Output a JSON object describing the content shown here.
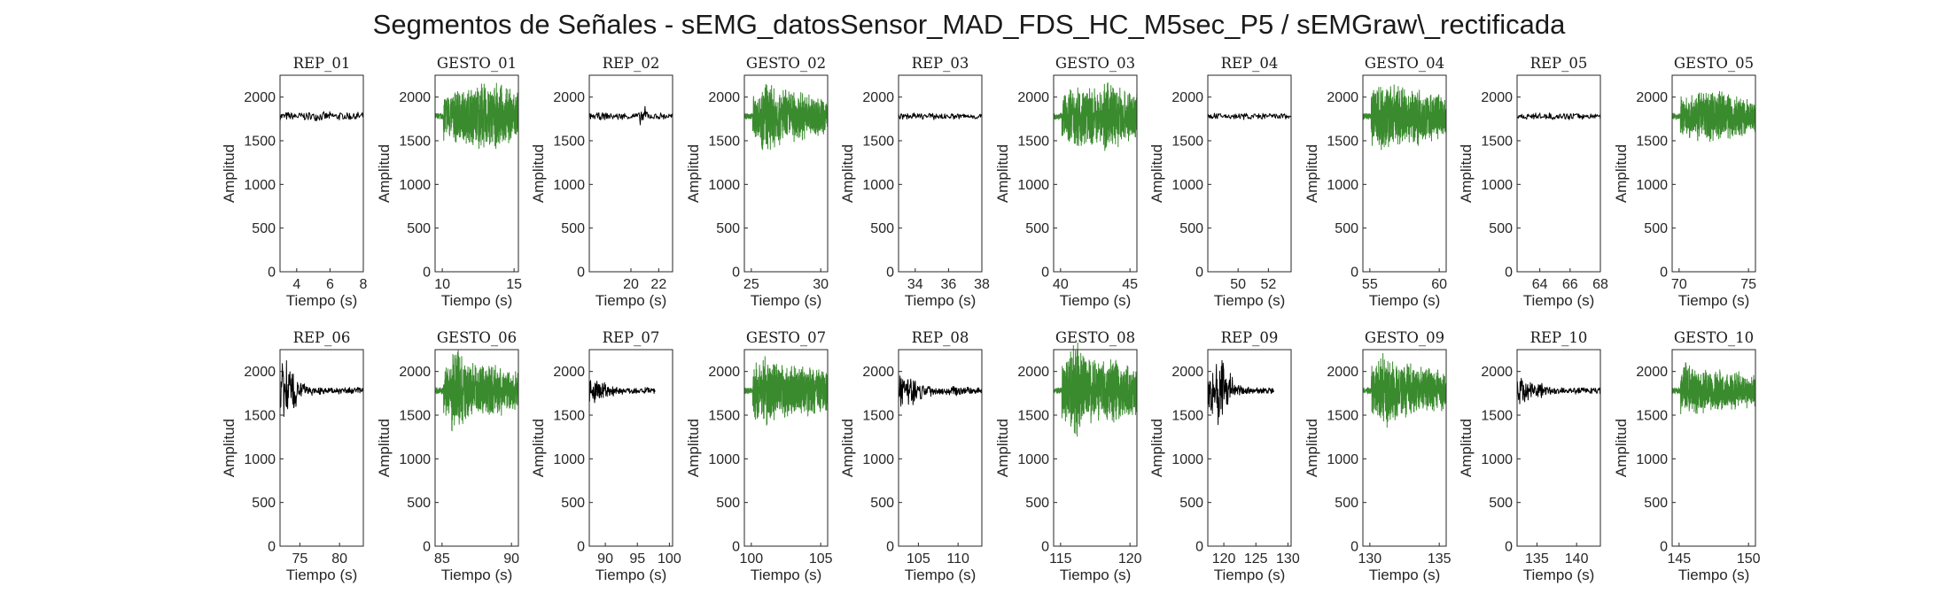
{
  "figure": {
    "title": "Segmentos de Señales - sEMG_datosSensor_MAD_FDS_HC_M5sec_P5 / sEMGraw\\_rectificada"
  },
  "colors": {
    "rep": "#000000",
    "gesto": "#3a8a2e",
    "axis": "#262626"
  },
  "chart_data": [
    {
      "type": "line",
      "title": "REP_01",
      "series_color": "black",
      "xlabel": "Tiempo (s)",
      "ylabel": "Amplitud",
      "xlim": [
        3,
        8
      ],
      "ylim": [
        0,
        2250
      ],
      "xticks": [
        4,
        6,
        8
      ],
      "yticks": [
        0,
        500,
        1000,
        1500,
        2000
      ],
      "baseline": 1780,
      "envelope": [
        55,
        55,
        55,
        55,
        55,
        55,
        55,
        55,
        55,
        55
      ],
      "n": 140
    },
    {
      "type": "line",
      "title": "GESTO_01",
      "series_color": "green",
      "xlabel": "Tiempo (s)",
      "ylabel": "Amplitud",
      "xlim": [
        9.5,
        15.3
      ],
      "ylim": [
        0,
        2250
      ],
      "xticks": [
        10,
        15
      ],
      "yticks": [
        0,
        500,
        1000,
        1500,
        2000
      ],
      "baseline": 1780,
      "envelope": [
        40,
        300,
        330,
        340,
        380,
        420,
        400,
        380,
        350,
        320
      ],
      "n": 700
    },
    {
      "type": "line",
      "title": "REP_02",
      "series_color": "black",
      "xlabel": "Tiempo (s)",
      "ylabel": "Amplitud",
      "xlim": [
        17,
        23
      ],
      "ylim": [
        0,
        2250
      ],
      "xticks": [
        20,
        22
      ],
      "yticks": [
        0,
        500,
        1000,
        1500,
        2000
      ],
      "baseline": 1780,
      "envelope": [
        45,
        45,
        45,
        45,
        45,
        45,
        120,
        45,
        45,
        45
      ],
      "n": 140
    },
    {
      "type": "line",
      "title": "GESTO_02",
      "series_color": "green",
      "xlabel": "Tiempo (s)",
      "ylabel": "Amplitud",
      "xlim": [
        24.5,
        30.5
      ],
      "ylim": [
        0,
        2250
      ],
      "xticks": [
        25,
        30
      ],
      "yticks": [
        0,
        500,
        1000,
        1500,
        2000
      ],
      "baseline": 1780,
      "envelope": [
        40,
        280,
        430,
        400,
        350,
        330,
        300,
        280,
        260,
        230
      ],
      "n": 700
    },
    {
      "type": "line",
      "title": "REP_03",
      "series_color": "black",
      "xlabel": "Tiempo (s)",
      "ylabel": "Amplitud",
      "xlim": [
        33,
        38
      ],
      "ylim": [
        0,
        2250
      ],
      "xticks": [
        34,
        36,
        38
      ],
      "yticks": [
        0,
        500,
        1000,
        1500,
        2000
      ],
      "baseline": 1780,
      "envelope": [
        40,
        40,
        40,
        40,
        40,
        40,
        40,
        40,
        40,
        40
      ],
      "n": 140
    },
    {
      "type": "line",
      "title": "GESTO_03",
      "series_color": "green",
      "xlabel": "Tiempo (s)",
      "ylabel": "Amplitud",
      "xlim": [
        39.5,
        45.5
      ],
      "ylim": [
        0,
        2250
      ],
      "xticks": [
        40,
        45
      ],
      "yticks": [
        0,
        500,
        1000,
        1500,
        2000
      ],
      "baseline": 1780,
      "envelope": [
        40,
        320,
        380,
        360,
        340,
        330,
        420,
        400,
        350,
        300
      ],
      "n": 700
    },
    {
      "type": "line",
      "title": "REP_04",
      "series_color": "black",
      "xlabel": "Tiempo (s)",
      "ylabel": "Amplitud",
      "xlim": [
        48,
        53.5
      ],
      "ylim": [
        0,
        2250
      ],
      "xticks": [
        50,
        52
      ],
      "yticks": [
        0,
        500,
        1000,
        1500,
        2000
      ],
      "baseline": 1780,
      "envelope": [
        40,
        40,
        40,
        40,
        40,
        40,
        40,
        40,
        40,
        40
      ],
      "n": 140
    },
    {
      "type": "line",
      "title": "GESTO_04",
      "series_color": "green",
      "xlabel": "Tiempo (s)",
      "ylabel": "Amplitud",
      "xlim": [
        54.5,
        60.5
      ],
      "ylim": [
        0,
        2250
      ],
      "xticks": [
        55,
        60
      ],
      "yticks": [
        0,
        500,
        1000,
        1500,
        2000
      ],
      "baseline": 1780,
      "envelope": [
        40,
        450,
        420,
        400,
        380,
        360,
        350,
        330,
        300,
        270
      ],
      "n": 700
    },
    {
      "type": "line",
      "title": "REP_05",
      "series_color": "black",
      "xlabel": "Tiempo (s)",
      "ylabel": "Amplitud",
      "xlim": [
        62.5,
        68
      ],
      "ylim": [
        0,
        2250
      ],
      "xticks": [
        64,
        66,
        68
      ],
      "yticks": [
        0,
        500,
        1000,
        1500,
        2000
      ],
      "baseline": 1780,
      "envelope": [
        40,
        40,
        40,
        40,
        40,
        40,
        40,
        40,
        40,
        40
      ],
      "n": 140
    },
    {
      "type": "line",
      "title": "GESTO_05",
      "series_color": "green",
      "xlabel": "Tiempo (s)",
      "ylabel": "Amplitud",
      "xlim": [
        69.5,
        75.5
      ],
      "ylim": [
        0,
        2250
      ],
      "xticks": [
        70,
        75
      ],
      "yticks": [
        0,
        500,
        1000,
        1500,
        2000
      ],
      "baseline": 1780,
      "envelope": [
        40,
        230,
        260,
        300,
        330,
        320,
        300,
        280,
        250,
        200
      ],
      "n": 700
    },
    {
      "type": "line",
      "title": "REP_06",
      "series_color": "black",
      "xlabel": "Tiempo (s)",
      "ylabel": "Amplitud",
      "xlim": [
        72.5,
        83
      ],
      "ylim": [
        0,
        2250
      ],
      "xticks": [
        75,
        80
      ],
      "yticks": [
        0,
        500,
        1000,
        1500,
        2000
      ],
      "baseline": 1780,
      "envelope": [
        420,
        300,
        120,
        60,
        45,
        40,
        40,
        40,
        40,
        40
      ],
      "n": 220
    },
    {
      "type": "line",
      "title": "GESTO_06",
      "series_color": "green",
      "xlabel": "Tiempo (s)",
      "ylabel": "Amplitud",
      "xlim": [
        84.5,
        90.5
      ],
      "ylim": [
        0,
        2250
      ],
      "xticks": [
        85,
        90
      ],
      "yticks": [
        0,
        500,
        1000,
        1500,
        2000
      ],
      "baseline": 1780,
      "envelope": [
        40,
        300,
        520,
        420,
        350,
        330,
        310,
        300,
        280,
        250
      ],
      "n": 700
    },
    {
      "type": "line",
      "title": "REP_07",
      "series_color": "black",
      "xlabel": "Tiempo (s)",
      "ylabel": "Amplitud",
      "xlim": [
        87.5,
        100.5
      ],
      "ylim": [
        0,
        2250
      ],
      "xticks": [
        90,
        95,
        100
      ],
      "yticks": [
        0,
        500,
        1000,
        1500,
        2000
      ],
      "baseline": 1780,
      "envelope": [
        200,
        150,
        80,
        50,
        40,
        40,
        40,
        40,
        0,
        0
      ],
      "n": 200
    },
    {
      "type": "line",
      "title": "GESTO_07",
      "series_color": "green",
      "xlabel": "Tiempo (s)",
      "ylabel": "Amplitud",
      "xlim": [
        99.5,
        105.5
      ],
      "ylim": [
        0,
        2250
      ],
      "xticks": [
        100,
        105
      ],
      "yticks": [
        0,
        500,
        1000,
        1500,
        2000
      ],
      "baseline": 1780,
      "envelope": [
        40,
        400,
        450,
        380,
        340,
        320,
        300,
        300,
        290,
        270
      ],
      "n": 700
    },
    {
      "type": "line",
      "title": "REP_08",
      "series_color": "black",
      "xlabel": "Tiempo (s)",
      "ylabel": "Amplitud",
      "xlim": [
        102.5,
        113
      ],
      "ylim": [
        0,
        2250
      ],
      "xticks": [
        105,
        110
      ],
      "yticks": [
        0,
        500,
        1000,
        1500,
        2000
      ],
      "baseline": 1780,
      "envelope": [
        230,
        200,
        120,
        80,
        60,
        50,
        60,
        50,
        45,
        45
      ],
      "n": 220
    },
    {
      "type": "line",
      "title": "GESTO_08",
      "series_color": "green",
      "xlabel": "Tiempo (s)",
      "ylabel": "Amplitud",
      "xlim": [
        114.5,
        120.5
      ],
      "ylim": [
        0,
        2250
      ],
      "xticks": [
        115,
        120
      ],
      "yticks": [
        0,
        500,
        1000,
        1500,
        2000
      ],
      "baseline": 1780,
      "envelope": [
        40,
        400,
        580,
        450,
        420,
        400,
        380,
        400,
        350,
        300
      ],
      "n": 700
    },
    {
      "type": "line",
      "title": "REP_09",
      "series_color": "black",
      "xlabel": "Tiempo (s)",
      "ylabel": "Amplitud",
      "xlim": [
        117.5,
        130.5
      ],
      "ylim": [
        0,
        2250
      ],
      "xticks": [
        120,
        125,
        130
      ],
      "yticks": [
        0,
        500,
        1000,
        1500,
        2000
      ],
      "baseline": 1780,
      "envelope": [
        300,
        450,
        200,
        80,
        50,
        40,
        40,
        40,
        0,
        0
      ],
      "n": 200
    },
    {
      "type": "line",
      "title": "GESTO_09",
      "series_color": "green",
      "xlabel": "Tiempo (s)",
      "ylabel": "Amplitud",
      "xlim": [
        129.5,
        135.5
      ],
      "ylim": [
        0,
        2250
      ],
      "xticks": [
        130,
        135
      ],
      "yticks": [
        0,
        500,
        1000,
        1500,
        2000
      ],
      "baseline": 1780,
      "envelope": [
        40,
        350,
        450,
        380,
        340,
        320,
        300,
        280,
        260,
        240
      ],
      "n": 700
    },
    {
      "type": "line",
      "title": "REP_10",
      "series_color": "black",
      "xlabel": "Tiempo (s)",
      "ylabel": "Amplitud",
      "xlim": [
        132.5,
        143
      ],
      "ylim": [
        0,
        2250
      ],
      "xticks": [
        135,
        140
      ],
      "yticks": [
        0,
        500,
        1000,
        1500,
        2000
      ],
      "baseline": 1780,
      "envelope": [
        200,
        180,
        100,
        60,
        45,
        40,
        40,
        40,
        40,
        40
      ],
      "n": 220
    },
    {
      "type": "line",
      "title": "GESTO_10",
      "series_color": "green",
      "xlabel": "Tiempo (s)",
      "ylabel": "Amplitud",
      "xlim": [
        144.5,
        150.5
      ],
      "ylim": [
        0,
        2250
      ],
      "xticks": [
        145,
        150
      ],
      "yticks": [
        0,
        500,
        1000,
        1500,
        2000
      ],
      "baseline": 1780,
      "envelope": [
        40,
        350,
        300,
        280,
        260,
        250,
        240,
        230,
        220,
        200
      ],
      "n": 700
    }
  ]
}
